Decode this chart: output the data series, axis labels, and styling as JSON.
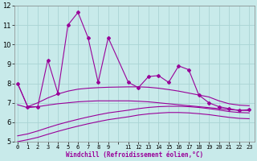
{
  "xlabel": "Windchill (Refroidissement éolien,°C)",
  "background_color": "#c8eaea",
  "grid_color": "#aad4d4",
  "line_color": "#990099",
  "x_values": [
    0,
    1,
    2,
    3,
    4,
    5,
    6,
    7,
    8,
    9,
    11,
    12,
    13,
    14,
    15,
    16,
    17,
    18,
    19,
    20,
    21,
    22,
    23
  ],
  "main_line": [
    8.0,
    6.8,
    6.8,
    9.2,
    7.5,
    11.0,
    11.65,
    10.35,
    8.05,
    10.35,
    8.05,
    7.78,
    8.35,
    8.4,
    8.05,
    8.9,
    8.7,
    7.4,
    7.0,
    6.8,
    6.7,
    6.6,
    6.65
  ],
  "upper_smooth": [
    8.0,
    6.8,
    7.0,
    7.25,
    7.45,
    7.6,
    7.7,
    7.75,
    7.78,
    7.8,
    7.82,
    7.82,
    7.8,
    7.75,
    7.68,
    7.6,
    7.5,
    7.4,
    7.3,
    7.1,
    6.95,
    6.88,
    6.85
  ],
  "mid_smooth": [
    6.9,
    6.75,
    6.8,
    6.88,
    6.95,
    7.0,
    7.05,
    7.08,
    7.1,
    7.1,
    7.1,
    7.08,
    7.05,
    7.0,
    6.95,
    6.9,
    6.85,
    6.8,
    6.75,
    6.7,
    6.65,
    6.62,
    6.6
  ],
  "low1_smooth": [
    5.3,
    5.4,
    5.55,
    5.72,
    5.88,
    6.02,
    6.15,
    6.27,
    6.38,
    6.48,
    6.62,
    6.7,
    6.76,
    6.8,
    6.82,
    6.82,
    6.8,
    6.76,
    6.7,
    6.63,
    6.55,
    6.5,
    6.48
  ],
  "low2_smooth": [
    5.0,
    5.1,
    5.22,
    5.38,
    5.53,
    5.67,
    5.8,
    5.92,
    6.03,
    6.13,
    6.28,
    6.37,
    6.43,
    6.47,
    6.5,
    6.5,
    6.48,
    6.44,
    6.39,
    6.32,
    6.25,
    6.2,
    6.18
  ],
  "ylim": [
    5,
    12
  ],
  "yticks": [
    5,
    6,
    7,
    8,
    9,
    10,
    11,
    12
  ],
  "xtick_labels": [
    "0",
    "1",
    "2",
    "3",
    "4",
    "5",
    "6",
    "7",
    "8",
    "9",
    "",
    "11",
    "12",
    "13",
    "14",
    "15",
    "16",
    "17",
    "18",
    "19",
    "20",
    "21",
    "22",
    "23"
  ],
  "xticks": [
    0,
    1,
    2,
    3,
    4,
    5,
    6,
    7,
    8,
    9,
    10,
    11,
    12,
    13,
    14,
    15,
    16,
    17,
    18,
    19,
    20,
    21,
    22,
    23
  ],
  "xlim": [
    -0.3,
    23.5
  ]
}
